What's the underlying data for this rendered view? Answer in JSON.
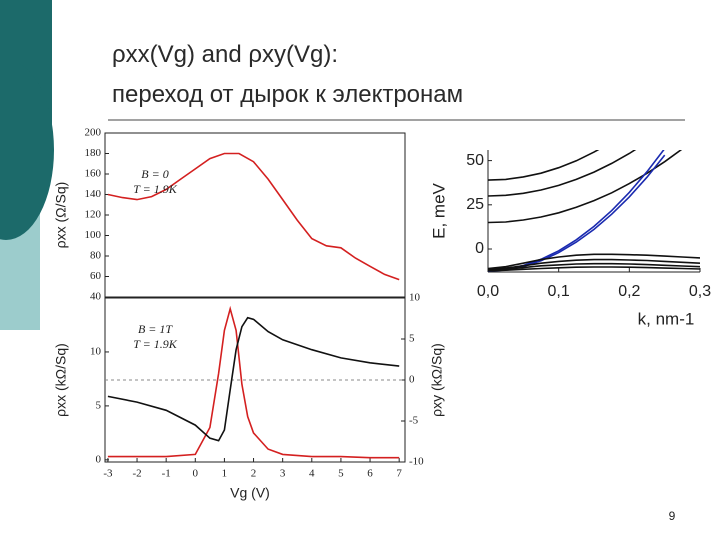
{
  "slide": {
    "title_lines": [
      "ρxx(Vg) and ρxy(Vg):",
      "переход от дырок к электронам"
    ],
    "page_number": "9"
  },
  "chart_data": [
    {
      "type": "line",
      "y_label": "ρxx (Ω/Sq)",
      "annotations": [
        "B = 0",
        "T = 1.9K"
      ],
      "x": [
        -3,
        -2.5,
        -2,
        -1.5,
        -1,
        -0.5,
        0,
        0.5,
        1,
        1.5,
        2,
        2.5,
        3,
        3.5,
        4,
        4.5,
        5,
        5.5,
        6,
        6.5,
        7
      ],
      "xlim": [
        -3.1,
        7.2
      ],
      "ylim": [
        40,
        200
      ],
      "yticks": [
        40,
        60,
        80,
        100,
        120,
        140,
        160,
        180,
        200
      ],
      "series": [
        {
          "color": "#d42020",
          "values": [
            140,
            137,
            135,
            138,
            145,
            155,
            165,
            175,
            180,
            180,
            172,
            155,
            135,
            115,
            97,
            90,
            88,
            78,
            70,
            62,
            57
          ]
        }
      ]
    },
    {
      "type": "line",
      "x_label": "Vg (V)",
      "y_label": "ρxx (kΩ/Sq)",
      "y2_label": "ρxy (kΩ/Sq)",
      "annotations": [
        "B = 1T",
        "T = 1.9K"
      ],
      "x": [
        -3,
        -2,
        -1,
        0,
        0.5,
        0.8,
        1,
        1.2,
        1.4,
        1.6,
        1.8,
        2,
        2.5,
        3,
        4,
        5,
        6,
        7
      ],
      "xlim": [
        -3.1,
        7.2
      ],
      "xticks": [
        -3,
        -2,
        -1,
        0,
        1,
        2,
        3,
        4,
        5,
        6,
        7
      ],
      "ylim": [
        -0.2,
        15
      ],
      "yticks": [
        0,
        5,
        10
      ],
      "y2lim": [
        -10,
        10
      ],
      "y2ticks": [
        -10,
        -5,
        0,
        5,
        10
      ],
      "series": [
        {
          "color": "#d42020",
          "values": [
            0.3,
            0.3,
            0.3,
            0.5,
            3,
            8,
            12,
            14,
            12,
            7,
            4,
            2.5,
            1,
            0.5,
            0.3,
            0.3,
            0.2,
            0.2
          ]
        },
        {
          "color": "#111111",
          "axis": "y2",
          "values": [
            -2,
            -2.7,
            -3.7,
            -5.5,
            -7.1,
            -7.4,
            -6.1,
            -1.2,
            3.7,
            6.5,
            7.6,
            7.4,
            5.9,
            4.9,
            3.7,
            2.7,
            2.1,
            1.7
          ]
        }
      ]
    },
    {
      "type": "line",
      "x_label": "k, nm-1",
      "y_label": "E, meV",
      "x": [
        0,
        0.025,
        0.05,
        0.075,
        0.1,
        0.125,
        0.15,
        0.175,
        0.2,
        0.225,
        0.25,
        0.275,
        0.3
      ],
      "xlim": [
        0,
        0.3
      ],
      "xticks": [
        {
          "value": 0,
          "label": "0,0"
        },
        {
          "value": 0.1,
          "label": "0,1"
        },
        {
          "value": 0.2,
          "label": "0,2"
        },
        {
          "value": 0.3,
          "label": "0,3"
        }
      ],
      "ylim": [
        -13,
        56
      ],
      "yticks": [
        0,
        25,
        50
      ],
      "series": [
        {
          "color": "#111111",
          "values": [
            39,
            39.4,
            40.8,
            42.9,
            46,
            49.9,
            54.8,
            60.4,
            null,
            null,
            null,
            null,
            null
          ]
        },
        {
          "color": "#111111",
          "values": [
            30,
            30.4,
            31.5,
            33.4,
            36,
            39.4,
            43.5,
            48.4,
            54,
            60.4,
            null,
            null,
            null
          ]
        },
        {
          "color": "#111111",
          "values": [
            15,
            15.3,
            16.4,
            18.1,
            20.5,
            23.6,
            27.4,
            31.8,
            37,
            42.8,
            49.4,
            56.6,
            null
          ]
        },
        {
          "color": "#1a2ab0",
          "values": [
            -12,
            -11.3,
            -9.3,
            -5.8,
            -1,
            5.2,
            12.8,
            21.7,
            32,
            43.7,
            56.8,
            null,
            null
          ]
        },
        {
          "color": "#1a2ab0",
          "values": [
            -12.5,
            -11.8,
            -9.9,
            -6.6,
            -2,
            3.9,
            11.1,
            19.7,
            29.5,
            40.6,
            53.1,
            null,
            null
          ]
        },
        {
          "color": "#111111",
          "values": [
            -11,
            -10,
            -8,
            -6,
            -4.5,
            -3.5,
            -3,
            -3,
            -3.2,
            -3.5,
            -4,
            -4.5,
            -5
          ]
        },
        {
          "color": "#111111",
          "values": [
            -11.5,
            -10.8,
            -9.5,
            -8,
            -7,
            -6.3,
            -6,
            -6,
            -6.2,
            -6.5,
            -7,
            -7.5,
            -8
          ]
        },
        {
          "color": "#111111",
          "values": [
            -12,
            -11.5,
            -10.5,
            -9.5,
            -9,
            -8.5,
            -8.3,
            -8.3,
            -8.5,
            -8.8,
            -9.2,
            -9.6,
            -10
          ]
        },
        {
          "color": "#111111",
          "values": [
            -12.3,
            -12,
            -11.5,
            -11,
            -10.6,
            -10.3,
            -10.2,
            -10.2,
            -10.3,
            -10.5,
            -10.8,
            -11,
            -11.3
          ]
        }
      ]
    }
  ]
}
